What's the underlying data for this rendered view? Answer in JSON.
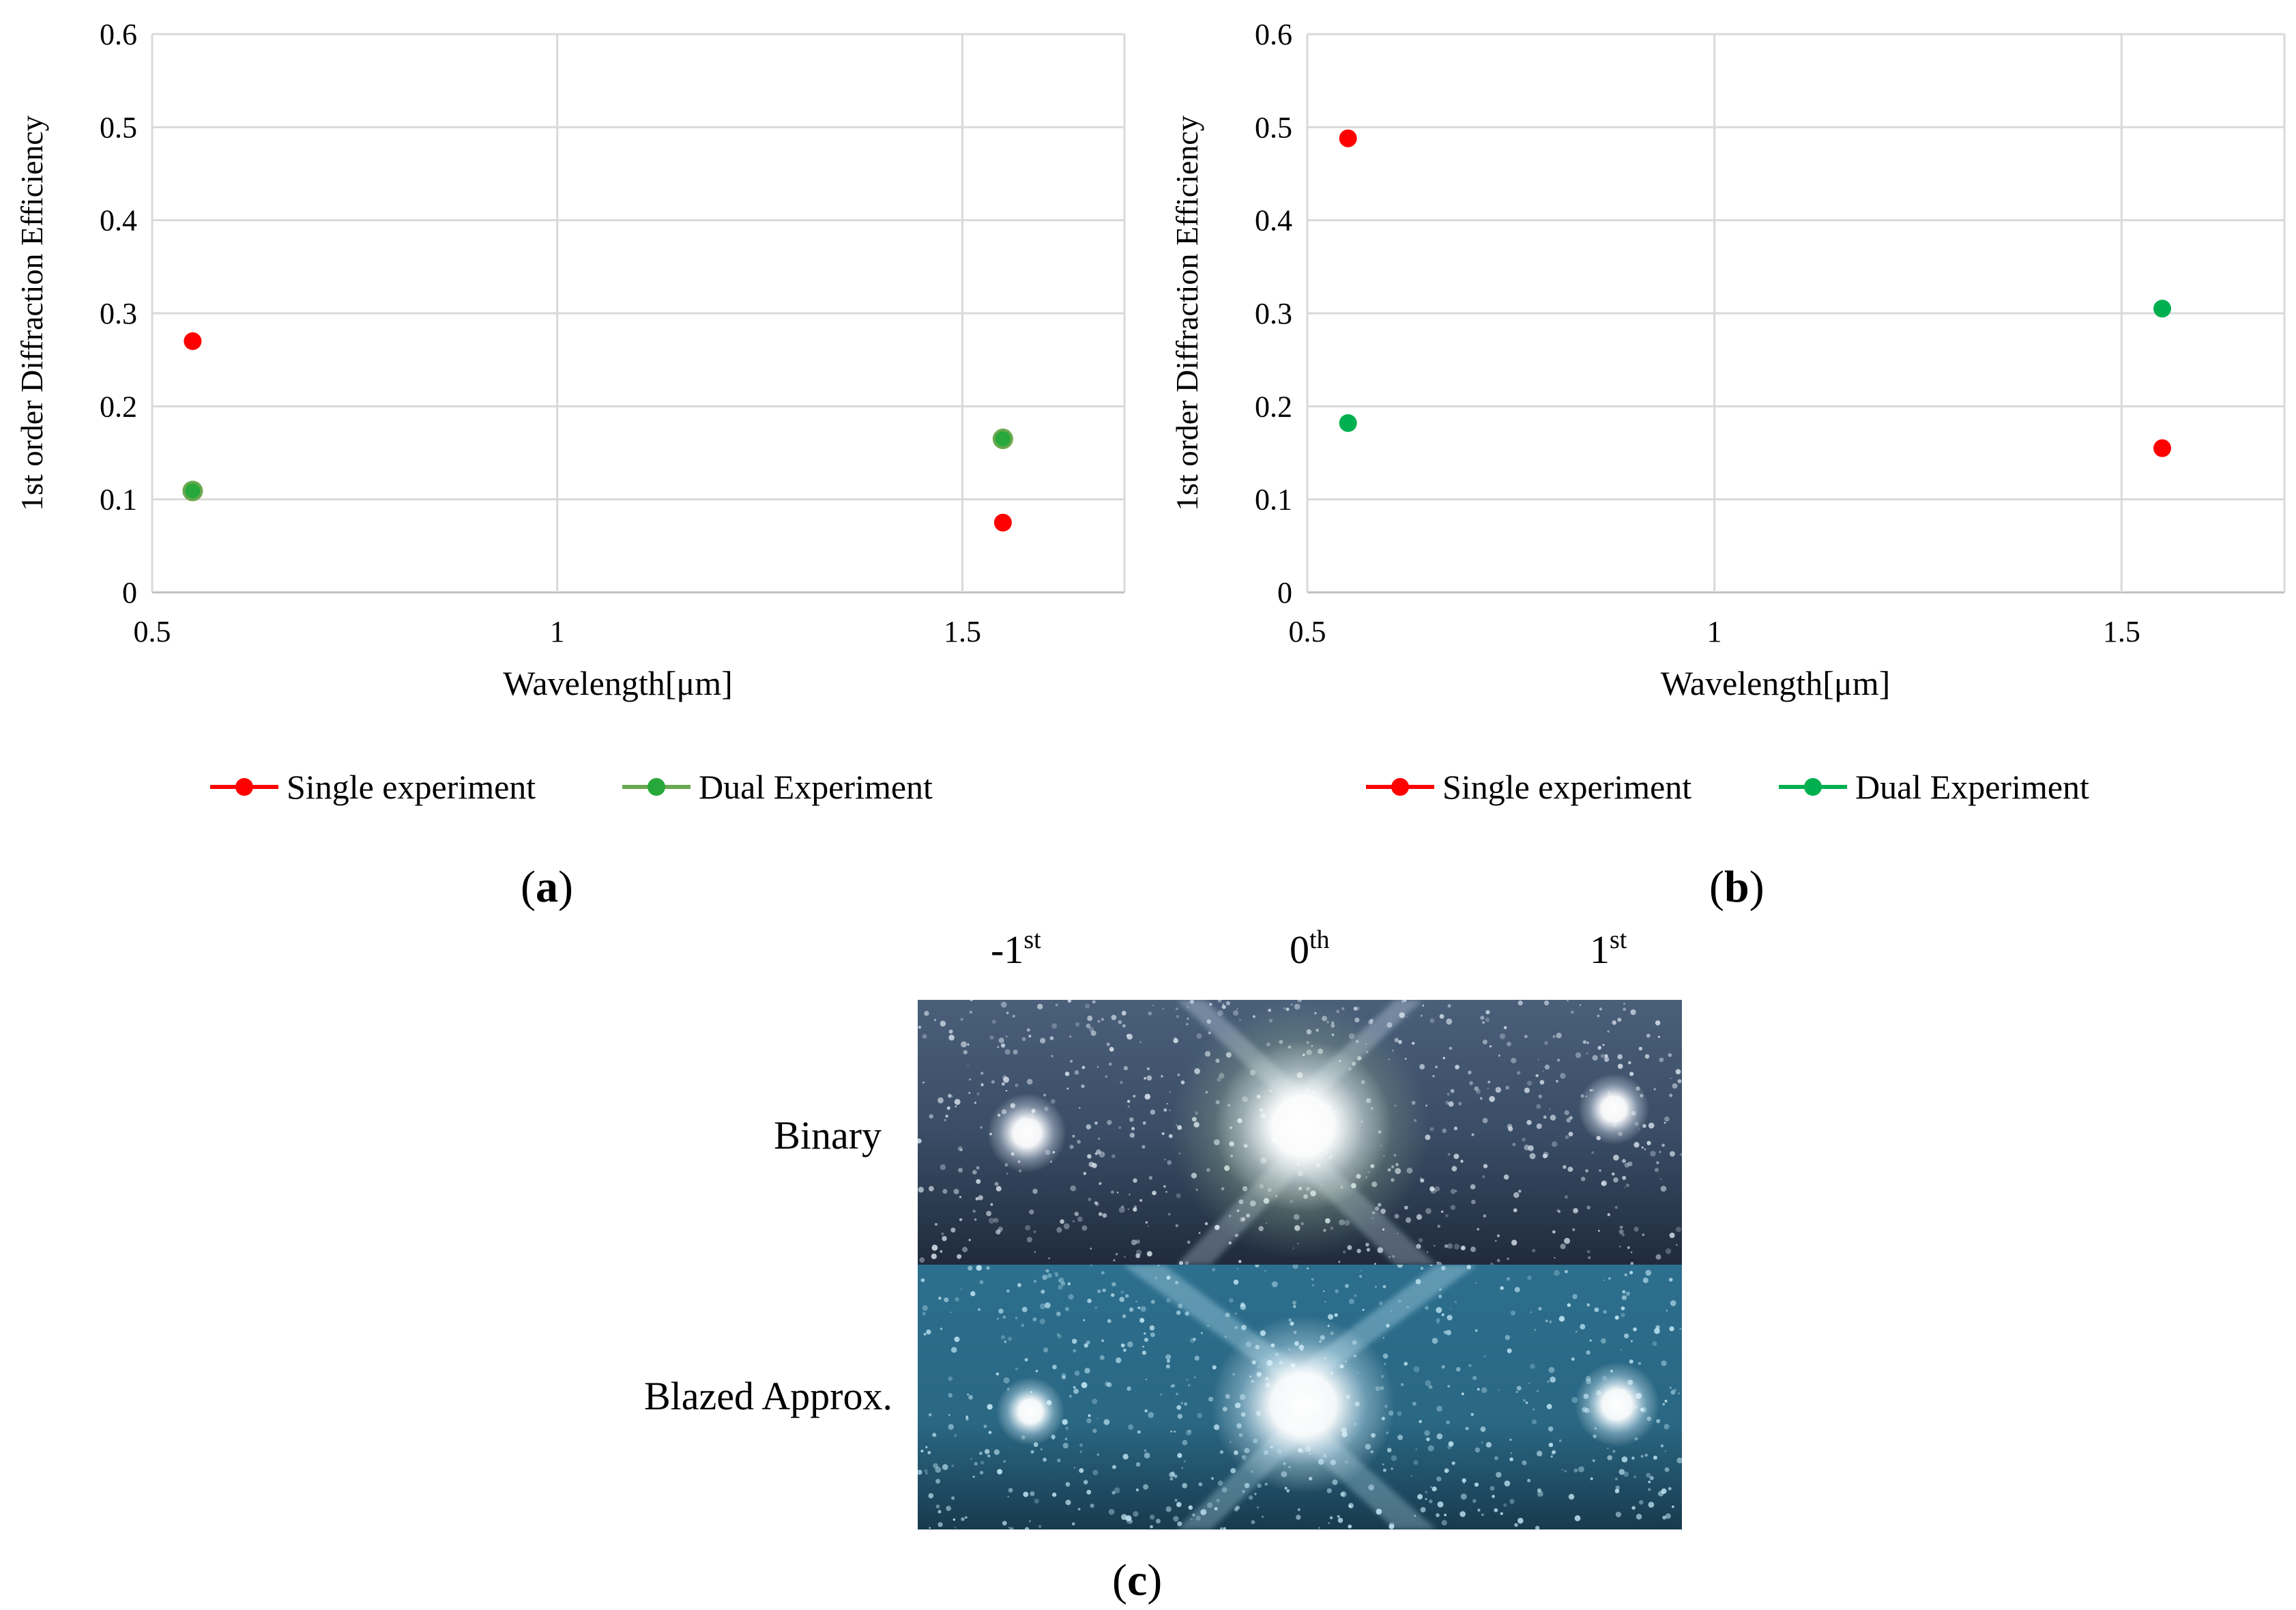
{
  "colors": {
    "single": "#ff0000",
    "dual_a": "#27a83a",
    "dual_a_line": "#6aa84f",
    "dual_b": "#00b050",
    "grid": "#d9d9d9",
    "axis": "#bfbfbf"
  },
  "chart_data": [
    {
      "panel": "a",
      "type": "scatter",
      "title": "",
      "xlabel": "Wavelength[μm]",
      "ylabel": "1st order Diffraction Efficiency",
      "xlim": [
        0.5,
        1.7
      ],
      "ylim": [
        0,
        0.6
      ],
      "xticks": [
        "0.5",
        "1",
        "1.5"
      ],
      "xtick_values": [
        0.5,
        1,
        1.5
      ],
      "yticks": [
        "0",
        "0.1",
        "0.2",
        "0.3",
        "0.4",
        "0.5",
        "0.6"
      ],
      "ytick_values": [
        0,
        0.1,
        0.2,
        0.3,
        0.4,
        0.5,
        0.6
      ],
      "grid": true,
      "legend_position": "bottom",
      "series": [
        {
          "name": "Single experiment",
          "color_key": "single",
          "points": [
            [
              0.55,
              0.27
            ],
            [
              1.55,
              0.075
            ]
          ]
        },
        {
          "name": "Dual Experiment",
          "color_key": "dual_a",
          "points": [
            [
              0.55,
              0.109
            ],
            [
              1.55,
              0.165
            ]
          ]
        }
      ]
    },
    {
      "panel": "b",
      "type": "scatter",
      "title": "",
      "xlabel": "Wavelength[μm]",
      "ylabel": "1st order Diffraction Efficiency",
      "xlim": [
        0.5,
        1.7
      ],
      "ylim": [
        0,
        0.6
      ],
      "xticks": [
        "0.5",
        "1",
        "1.5"
      ],
      "xtick_values": [
        0.5,
        1,
        1.5
      ],
      "yticks": [
        "0",
        "0.1",
        "0.2",
        "0.3",
        "0.4",
        "0.5",
        "0.6"
      ],
      "ytick_values": [
        0,
        0.1,
        0.2,
        0.3,
        0.4,
        0.5,
        0.6
      ],
      "grid": true,
      "legend_position": "bottom",
      "series": [
        {
          "name": "Single experiment",
          "color_key": "single",
          "points": [
            [
              0.55,
              0.488
            ],
            [
              1.55,
              0.155
            ]
          ]
        },
        {
          "name": "Dual Experiment",
          "color_key": "dual_b",
          "points": [
            [
              0.55,
              0.182
            ],
            [
              1.55,
              0.305
            ]
          ]
        }
      ]
    }
  ],
  "captions": {
    "a": "a",
    "b": "b",
    "c": "c"
  },
  "panel_c": {
    "orders": [
      {
        "base": "-1",
        "sup": "st"
      },
      {
        "base": "0",
        "sup": "th"
      },
      {
        "base": "1",
        "sup": "st"
      }
    ],
    "rows": [
      "Binary",
      "Blazed Approx."
    ]
  }
}
